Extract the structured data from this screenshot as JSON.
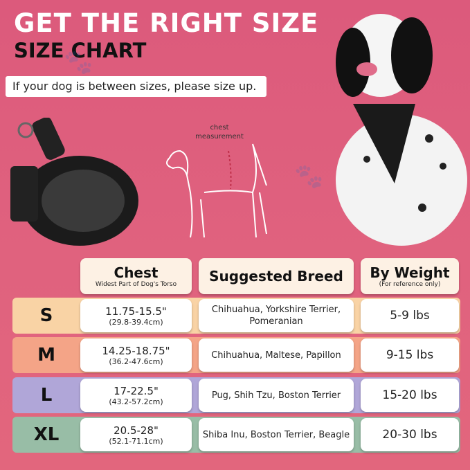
{
  "header": {
    "title": "GET THE RIGHT SIZE",
    "subtitle": "SIZE CHART",
    "note": "If your dog is between sizes, please size up."
  },
  "diagram": {
    "label": "chest measurement"
  },
  "table": {
    "headers": [
      {
        "title": "Chest",
        "subtitle": "Widest Part of Dog's Torso"
      },
      {
        "title": "Suggested Breed",
        "subtitle": ""
      },
      {
        "title": "By Weight",
        "subtitle": "(For reference only)"
      }
    ],
    "rows": [
      {
        "size": "S",
        "color": "#f9d3a5",
        "chest_in": "11.75-15.5\"",
        "chest_cm": "(29.8-39.4cm)",
        "breed": "Chihuahua, Yorkshire Terrier, Pomeranian",
        "weight": "5-9 lbs"
      },
      {
        "size": "M",
        "color": "#f4a487",
        "chest_in": "14.25-18.75\"",
        "chest_cm": "(36.2-47.6cm)",
        "breed": "Chihuahua, Maltese, Papillon",
        "weight": "9-15 lbs"
      },
      {
        "size": "L",
        "color": "#b0a6d8",
        "chest_in": "17-22.5\"",
        "chest_cm": "(43.2-57.2cm)",
        "breed": "Pug, Shih Tzu, Boston Terrier",
        "weight": "15-20 lbs"
      },
      {
        "size": "XL",
        "color": "#98bda6",
        "chest_in": "20.5-28\"",
        "chest_cm": "(52.1-71.1cm)",
        "breed": "Shiba Inu, Boston Terrier, Beagle",
        "weight": "20-30 lbs"
      }
    ]
  }
}
